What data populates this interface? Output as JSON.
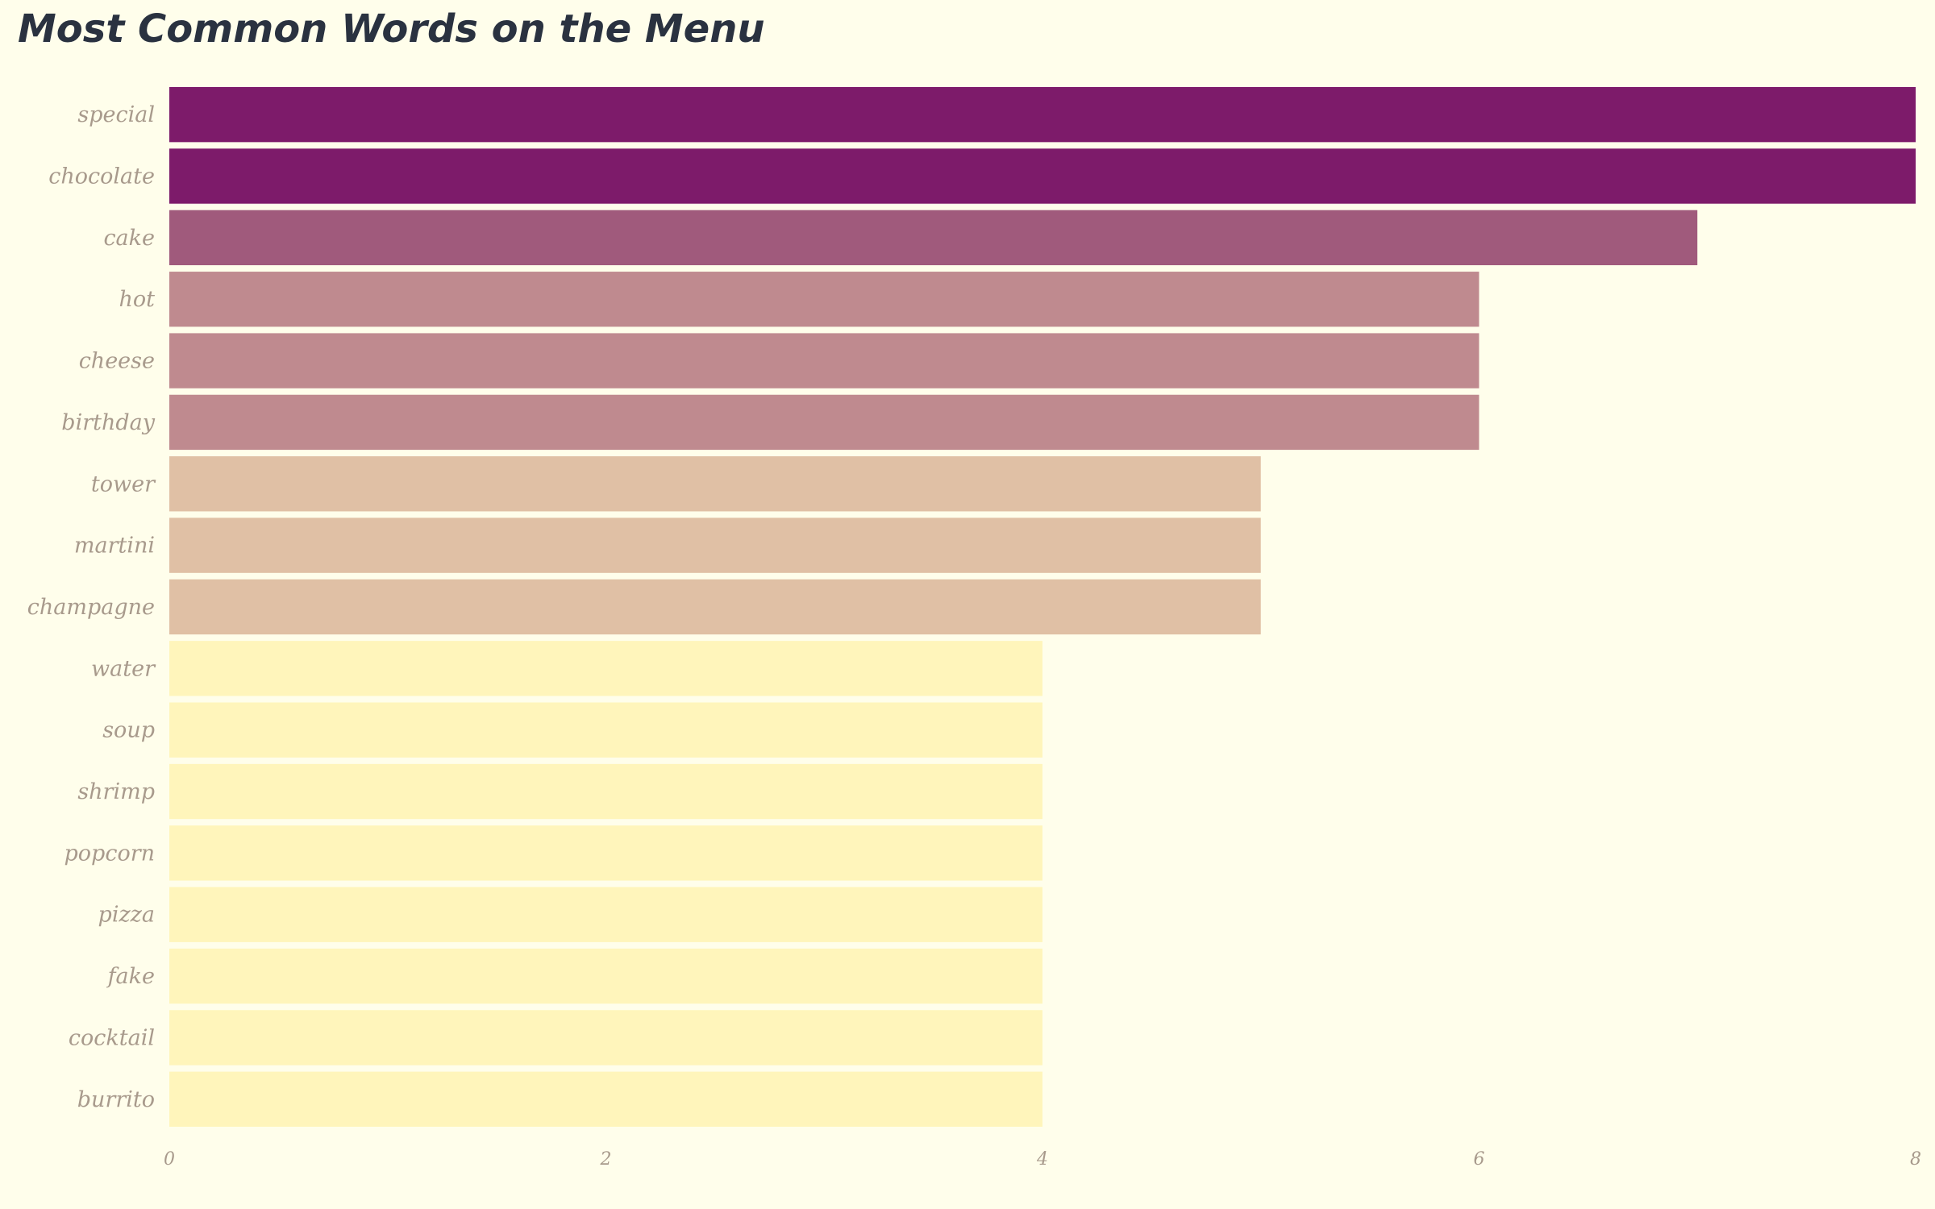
{
  "chart_data": {
    "type": "bar",
    "orientation": "horizontal",
    "title": "Most Common Words on the Menu",
    "xlabel": "",
    "ylabel": "",
    "categories": [
      "special",
      "chocolate",
      "cake",
      "hot",
      "cheese",
      "birthday",
      "tower",
      "martini",
      "champagne",
      "water",
      "soup",
      "shrimp",
      "popcorn",
      "pizza",
      "fake",
      "cocktail",
      "burrito"
    ],
    "values": [
      8,
      8,
      7,
      6,
      6,
      6,
      5,
      5,
      5,
      4,
      4,
      4,
      4,
      4,
      4,
      4,
      4
    ],
    "xlim": [
      0,
      8
    ],
    "xticks": [
      0,
      2,
      4,
      6,
      8
    ],
    "grid": false,
    "legend": "none",
    "colors_by_value": {
      "8": "#7d1b6a",
      "7": "#a05a7c",
      "6": "#bf8a8f",
      "5": "#e0c0a5",
      "4": "#fff5bb"
    }
  },
  "colors": {
    "background": "#fffeeb",
    "title": "#2a3240",
    "labels": "#a89a8c"
  }
}
